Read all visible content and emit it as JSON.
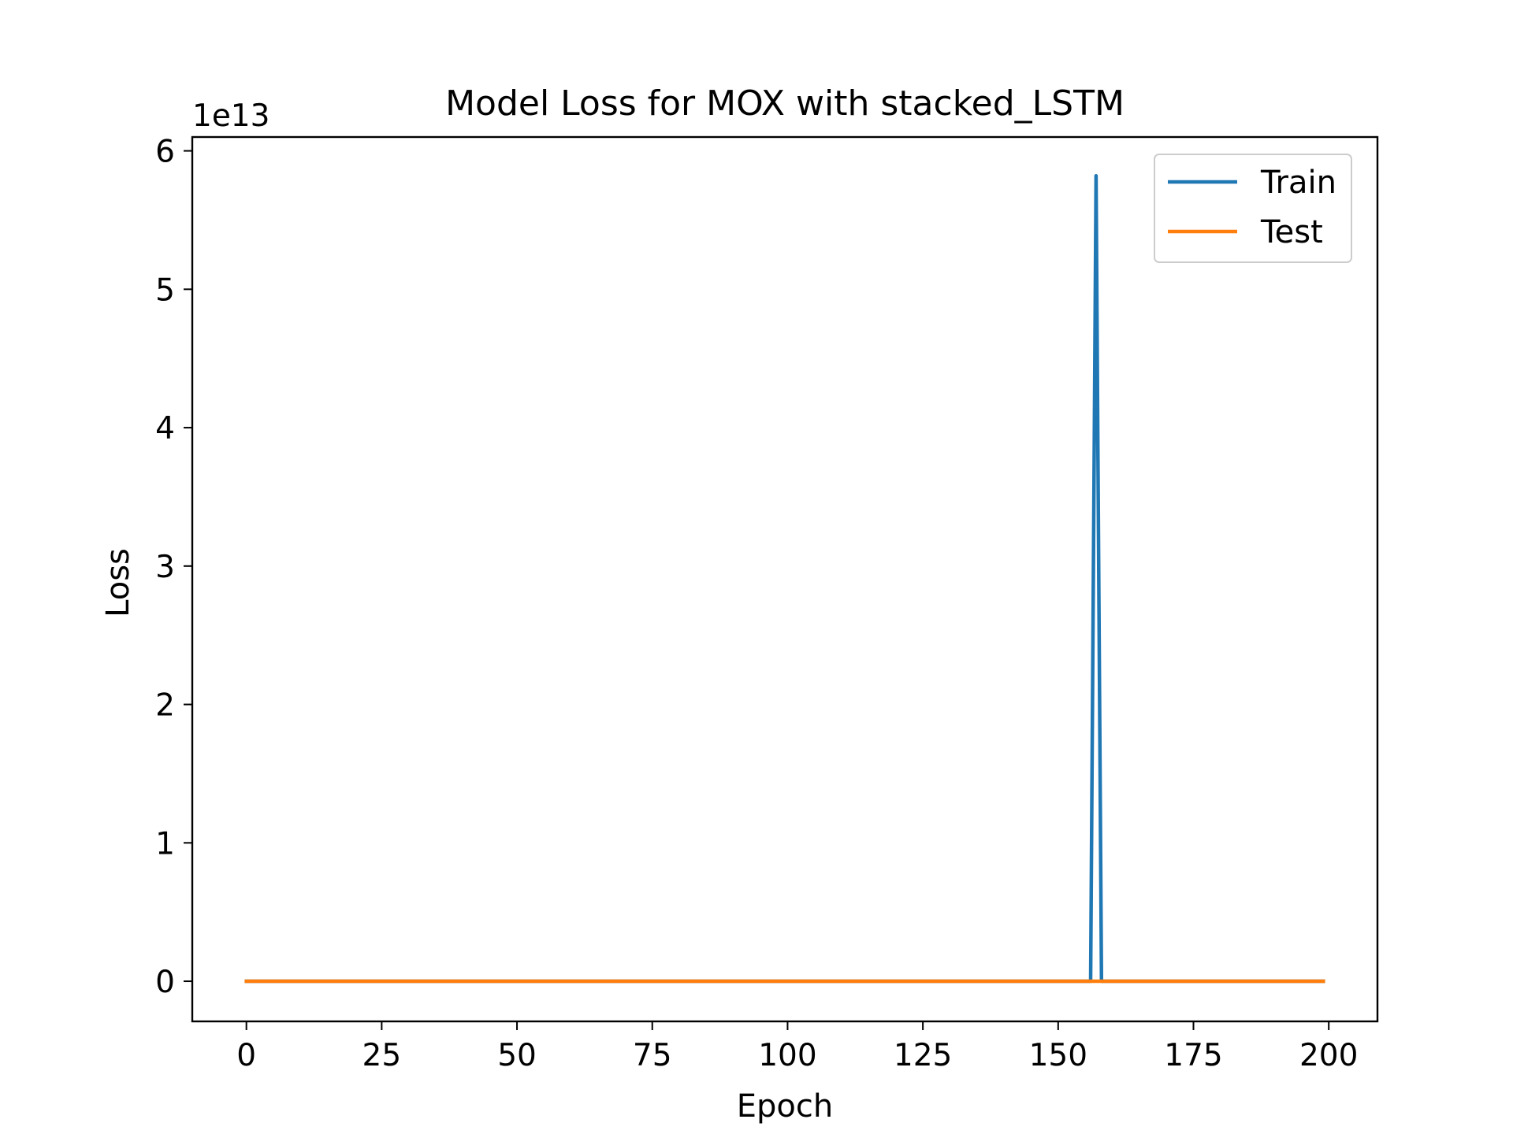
{
  "chart_data": {
    "type": "line",
    "title": "Model Loss for MOX with stacked_LSTM",
    "xlabel": "Epoch",
    "ylabel": "Loss",
    "y_offset_text": "1e13",
    "x_ticks": [
      0,
      25,
      50,
      75,
      100,
      125,
      150,
      175,
      200
    ],
    "y_ticks": [
      0,
      1,
      2,
      3,
      4,
      5,
      6
    ],
    "y_tick_labels": [
      "0",
      "1",
      "2",
      "3",
      "4",
      "5",
      "6"
    ],
    "xlim": [
      -10,
      209
    ],
    "ylim": [
      -0.29,
      6.1
    ],
    "y_scale": "1e13",
    "grid": false,
    "legend_position": "upper right",
    "series": [
      {
        "name": "Train",
        "color": "#1f77b4",
        "x": [
          0,
          156,
          157,
          158,
          199
        ],
        "y": [
          0,
          0,
          5.82,
          0,
          0
        ]
      },
      {
        "name": "Test",
        "color": "#ff7f0e",
        "x": [
          0,
          199
        ],
        "y": [
          0,
          0
        ]
      }
    ]
  }
}
